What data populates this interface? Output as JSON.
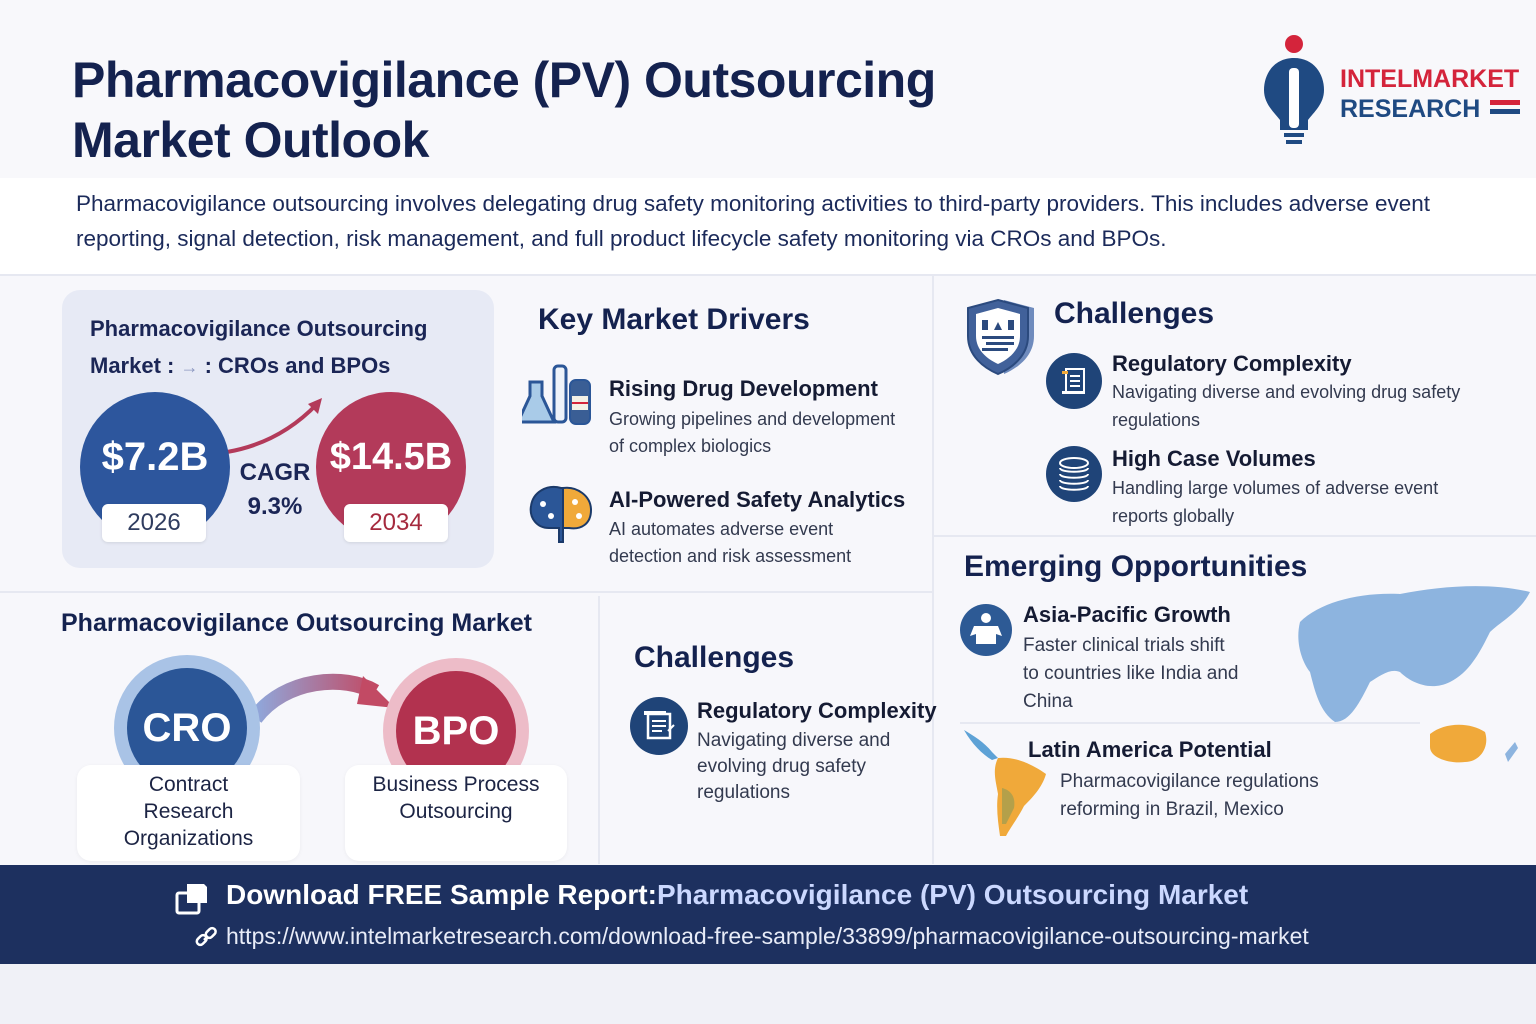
{
  "header": {
    "title_line1": "Pharmacovigilance (PV) Outsourcing",
    "title_line2": "Market Outlook",
    "logo_line1": "INTELMARKET",
    "logo_line2": "RESEARCH"
  },
  "intro": "Pharmacovigilance outsourcing involves delegating drug safety monitoring activities to third-party providers. This includes adverse event reporting, signal detection, risk management, and full product lifecycle safety monitoring via CROs and BPOs.",
  "market_card": {
    "title_line1": "Pharmacovigilance Outsourcing",
    "title_prefix": "Market :",
    "title_arrow": "→",
    "title_suffix": ": CROs and BPOs",
    "start_value": "$7.2B",
    "start_year": "2026",
    "end_value": "$14.5B",
    "end_year": "2034",
    "cagr_label": "CAGR",
    "cagr_value": "9.3%"
  },
  "drivers": {
    "title": "Key Market Drivers",
    "items": [
      {
        "title": "Rising Drug Development",
        "desc_line1": "Growing pipelines and development",
        "desc_line2": "of complex biologics",
        "icon": "lab-flask-icon"
      },
      {
        "title": "AI-Powered Safety Analytics",
        "desc_line1": "AI automates adverse event",
        "desc_line2": "detection and risk assessment",
        "icon": "brain-icon"
      }
    ]
  },
  "challenges_right": {
    "title": "Challenges",
    "items": [
      {
        "title": "Regulatory Complexity",
        "desc_line1": "Navigating diverse and evolving drug safety",
        "desc_line2": "regulations",
        "icon": "document-icon"
      },
      {
        "title": "High Case Volumes",
        "desc_line1": "Handling large volumes of adverse event",
        "desc_line2": "reports globally",
        "icon": "database-stack-icon"
      }
    ]
  },
  "opportunities": {
    "title": "Emerging Opportunities",
    "items": [
      {
        "title": "Asia-Pacific Growth",
        "desc_line1": "Faster clinical trials shift",
        "desc_line2": "to countries like India and",
        "desc_line3": "China",
        "icon": "person-icon"
      },
      {
        "title": "Latin America Potential",
        "desc_line1": "Pharmacovigilance regulations",
        "desc_line2": "reforming in Brazil, Mexico",
        "icon": "south-america-map-icon"
      }
    ]
  },
  "segments": {
    "title": "Pharmacovigilance Outsourcing Market",
    "cro": {
      "abbr": "CRO",
      "line1": "Contract",
      "line2": "Research",
      "line3": "Organizations"
    },
    "bpo": {
      "abbr": "BPO",
      "line1": "Business Process",
      "line2": "Outsourcing"
    }
  },
  "challenges_left": {
    "title": "Challenges",
    "item_title": "Regulatory Complexity",
    "desc_line1": "Navigating diverse and",
    "desc_line2": "evolving drug safety",
    "desc_line3": "regulations"
  },
  "footer": {
    "cta_prefix": "Download FREE Sample Report:",
    "cta_highlight": "Pharmacovigilance (PV) Outsourcing Market",
    "url": "https://www.intelmarketresearch.com/download-free-sample/33899/pharmacovigilance-outsourcing-market"
  },
  "colors": {
    "navy": "#14224f",
    "brand_blue": "#2d569d",
    "brand_red": "#b33a5a",
    "footer_bg": "#1d305f"
  }
}
